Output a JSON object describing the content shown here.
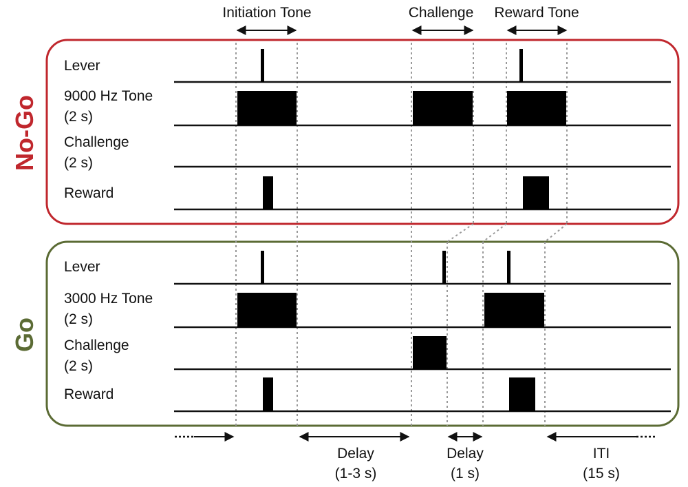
{
  "header": {
    "initiation": "Initiation Tone",
    "challenge": "Challenge",
    "reward": "Reward Tone"
  },
  "nogo": {
    "title": "No-Go",
    "color": "#c0272d",
    "rows": [
      {
        "line1": "Lever",
        "line2": ""
      },
      {
        "line1": "9000 Hz Tone",
        "line2": "(2 s)"
      },
      {
        "line1": "Challenge",
        "line2": "(2 s)"
      },
      {
        "line1": "Reward",
        "line2": ""
      }
    ]
  },
  "go": {
    "title": "Go",
    "color": "#5b6b34",
    "rows": [
      {
        "line1": "Lever",
        "line2": ""
      },
      {
        "line1": "3000 Hz Tone",
        "line2": "(2 s)"
      },
      {
        "line1": "Challenge",
        "line2": "(2 s)"
      },
      {
        "line1": "Reward",
        "line2": ""
      }
    ]
  },
  "bottom": {
    "delay1": {
      "line1": "Delay",
      "line2": "(1-3 s)"
    },
    "delay2": {
      "line1": "Delay",
      "line2": "(1 s)"
    },
    "iti": {
      "line1": "ITI",
      "line2": "(15 s)"
    }
  }
}
